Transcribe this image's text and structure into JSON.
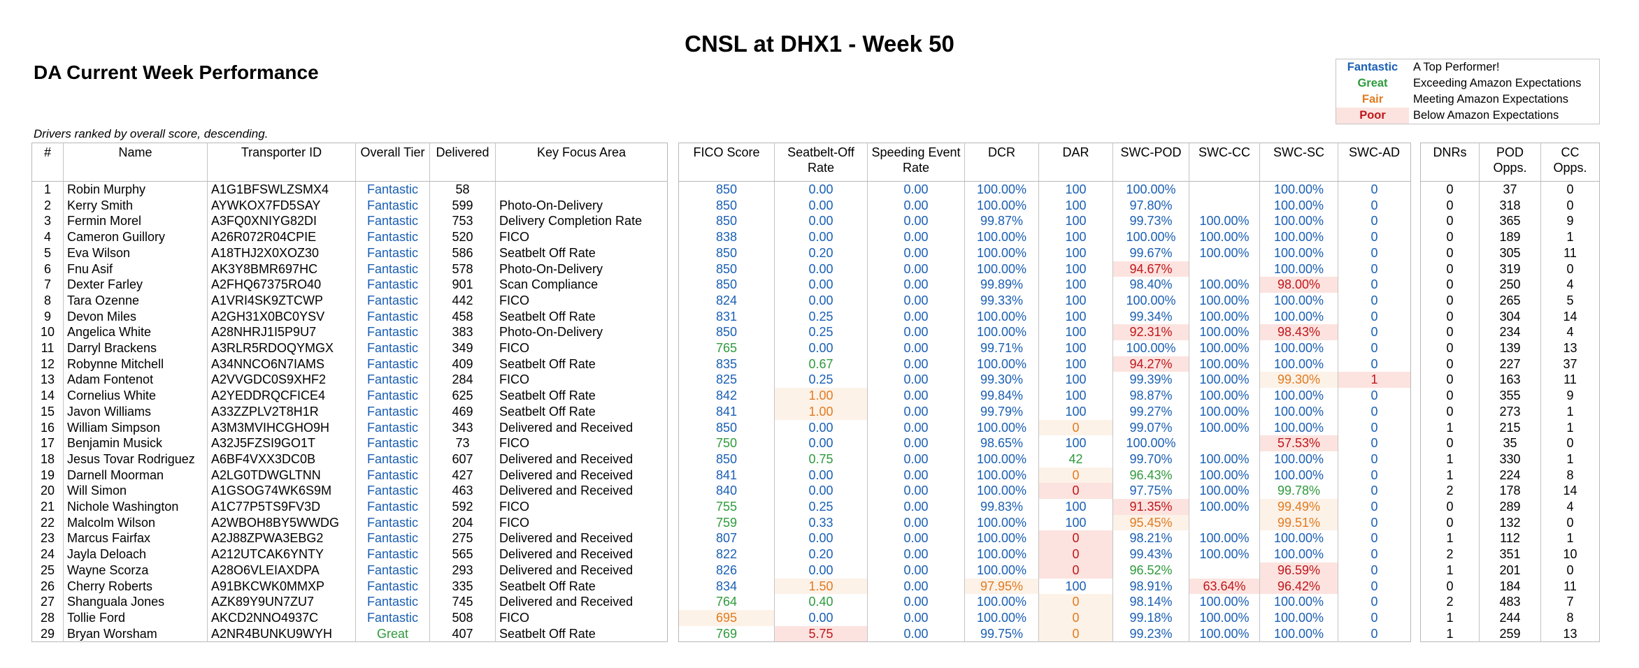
{
  "header": {
    "title": "CNSL at DHX1 - Week 50",
    "subtitle": "DA Current Week Performance",
    "note": "Drivers ranked by overall score, descending."
  },
  "legend": {
    "items": [
      {
        "tier": "Fantastic",
        "description": "A Top Performer!",
        "color": "#1a5fb4"
      },
      {
        "tier": "Great",
        "description": "Exceeding Amazon Expectations",
        "color": "#2e9a3c"
      },
      {
        "tier": "Fair",
        "description": "Meeting Amazon Expectations",
        "color": "#e07b20",
        "background": "#fdf2e8"
      },
      {
        "tier": "Poor",
        "description": "Below Amazon Expectations",
        "color": "#c0161c",
        "background": "#fce3df"
      }
    ]
  },
  "table": {
    "headers": [
      "#",
      "Name",
      "Transporter ID",
      "Overall Tier",
      "Delivered",
      "Key Focus Area",
      "FICO Score",
      "Seatbelt-Off Rate",
      "Speeding Event Rate",
      "DCR",
      "DAR",
      "SWC-POD",
      "SWC-CC",
      "SWC-SC",
      "SWC-AD",
      "DNRs",
      "POD Opps.",
      "CC Opps."
    ],
    "rows": [
      {
        "cells": [
          "1",
          "Robin Murphy",
          "A1G1BFSWLZSMX4",
          "Fantastic",
          "58",
          null,
          "850",
          "0.00",
          "0.00",
          "100.00%",
          "100",
          "100.00%",
          null,
          "100.00%",
          "0",
          "0",
          "37",
          "0"
        ],
        "tiers": [
          "Fantastic",
          "Fantastic",
          "Fantastic",
          "Fantastic",
          "Fantastic",
          "Fantastic",
          "Fantastic",
          null,
          "Fantastic",
          "Fantastic"
        ]
      },
      {
        "cells": [
          "2",
          "Kerry Smith",
          "AYWKOX7FD5SAY",
          "Fantastic",
          "599",
          "Photo-On-Delivery",
          "850",
          "0.00",
          "0.00",
          "100.00%",
          "100",
          "97.80%",
          null,
          "100.00%",
          "0",
          "0",
          "318",
          "0"
        ],
        "tiers": [
          "Fantastic",
          "Fantastic",
          "Fantastic",
          "Fantastic",
          "Fantastic",
          "Fantastic",
          "Fantastic",
          null,
          "Fantastic",
          "Fantastic"
        ]
      },
      {
        "cells": [
          "3",
          "Fermin Morel",
          "A3FQ0XNIYG82DI",
          "Fantastic",
          "753",
          "Delivery Completion Rate",
          "850",
          "0.00",
          "0.00",
          "99.87%",
          "100",
          "99.73%",
          "100.00%",
          "100.00%",
          "0",
          "0",
          "365",
          "9"
        ],
        "tiers": [
          "Fantastic",
          "Fantastic",
          "Fantastic",
          "Fantastic",
          "Fantastic",
          "Fantastic",
          "Fantastic",
          "Fantastic",
          "Fantastic",
          "Fantastic"
        ]
      },
      {
        "cells": [
          "4",
          "Cameron Guillory",
          "A26R072R04CPIE",
          "Fantastic",
          "520",
          "FICO",
          "838",
          "0.00",
          "0.00",
          "100.00%",
          "100",
          "100.00%",
          "100.00%",
          "100.00%",
          "0",
          "0",
          "189",
          "1"
        ],
        "tiers": [
          "Fantastic",
          "Fantastic",
          "Fantastic",
          "Fantastic",
          "Fantastic",
          "Fantastic",
          "Fantastic",
          "Fantastic",
          "Fantastic",
          "Fantastic"
        ]
      },
      {
        "cells": [
          "5",
          "Eva Wilson",
          "A18THJ2X0XOZ30",
          "Fantastic",
          "586",
          "Seatbelt Off Rate",
          "850",
          "0.20",
          "0.00",
          "100.00%",
          "100",
          "99.67%",
          "100.00%",
          "100.00%",
          "0",
          "0",
          "305",
          "11"
        ],
        "tiers": [
          "Fantastic",
          "Fantastic",
          "Fantastic",
          "Fantastic",
          "Fantastic",
          "Fantastic",
          "Fantastic",
          "Fantastic",
          "Fantastic",
          "Fantastic"
        ]
      },
      {
        "cells": [
          "6",
          "Fnu Asif",
          "AK3Y8BMR697HC",
          "Fantastic",
          "578",
          "Photo-On-Delivery",
          "850",
          "0.00",
          "0.00",
          "100.00%",
          "100",
          "94.67%",
          null,
          "100.00%",
          "0",
          "0",
          "319",
          "0"
        ],
        "tiers": [
          "Fantastic",
          "Fantastic",
          "Fantastic",
          "Fantastic",
          "Fantastic",
          "Fantastic",
          "Poor",
          null,
          "Fantastic",
          "Fantastic"
        ]
      },
      {
        "cells": [
          "7",
          "Dexter Farley",
          "A2FHQ67375RO40",
          "Fantastic",
          "901",
          "Scan Compliance",
          "850",
          "0.00",
          "0.00",
          "99.89%",
          "100",
          "98.40%",
          "100.00%",
          "98.00%",
          "0",
          "0",
          "250",
          "4"
        ],
        "tiers": [
          "Fantastic",
          "Fantastic",
          "Fantastic",
          "Fantastic",
          "Fantastic",
          "Fantastic",
          "Fantastic",
          "Fantastic",
          "Poor",
          "Fantastic"
        ]
      },
      {
        "cells": [
          "8",
          "Tara Ozenne",
          "A1VRI4SK9ZTCWP",
          "Fantastic",
          "442",
          "FICO",
          "824",
          "0.00",
          "0.00",
          "99.33%",
          "100",
          "100.00%",
          "100.00%",
          "100.00%",
          "0",
          "0",
          "265",
          "5"
        ],
        "tiers": [
          "Fantastic",
          "Fantastic",
          "Fantastic",
          "Fantastic",
          "Fantastic",
          "Fantastic",
          "Fantastic",
          "Fantastic",
          "Fantastic",
          "Fantastic"
        ]
      },
      {
        "cells": [
          "9",
          "Devon Miles",
          "A2GH31X0BC0YSV",
          "Fantastic",
          "458",
          "Seatbelt Off Rate",
          "831",
          "0.25",
          "0.00",
          "100.00%",
          "100",
          "99.34%",
          "100.00%",
          "100.00%",
          "0",
          "0",
          "304",
          "14"
        ],
        "tiers": [
          "Fantastic",
          "Fantastic",
          "Fantastic",
          "Fantastic",
          "Fantastic",
          "Fantastic",
          "Fantastic",
          "Fantastic",
          "Fantastic",
          "Fantastic"
        ]
      },
      {
        "cells": [
          "10",
          "Angelica White",
          "A28NHRJ1I5P9U7",
          "Fantastic",
          "383",
          "Photo-On-Delivery",
          "850",
          "0.25",
          "0.00",
          "100.00%",
          "100",
          "92.31%",
          "100.00%",
          "98.43%",
          "0",
          "0",
          "234",
          "4"
        ],
        "tiers": [
          "Fantastic",
          "Fantastic",
          "Fantastic",
          "Fantastic",
          "Fantastic",
          "Fantastic",
          "Poor",
          "Fantastic",
          "Poor",
          "Fantastic"
        ]
      },
      {
        "cells": [
          "11",
          "Darryl Brackens",
          "A3RLR5RDOQYMGX",
          "Fantastic",
          "349",
          "FICO",
          "765",
          "0.00",
          "0.00",
          "99.71%",
          "100",
          "100.00%",
          "100.00%",
          "100.00%",
          "0",
          "0",
          "139",
          "13"
        ],
        "tiers": [
          "Fantastic",
          "Great",
          "Fantastic",
          "Fantastic",
          "Fantastic",
          "Fantastic",
          "Fantastic",
          "Fantastic",
          "Fantastic",
          "Fantastic"
        ]
      },
      {
        "cells": [
          "12",
          "Robynne Mitchell",
          "A34NNCO6N7IAMS",
          "Fantastic",
          "409",
          "Seatbelt Off Rate",
          "835",
          "0.67",
          "0.00",
          "100.00%",
          "100",
          "94.27%",
          "100.00%",
          "100.00%",
          "0",
          "0",
          "227",
          "37"
        ],
        "tiers": [
          "Fantastic",
          "Fantastic",
          "Great",
          "Fantastic",
          "Fantastic",
          "Fantastic",
          "Poor",
          "Fantastic",
          "Fantastic",
          "Fantastic"
        ]
      },
      {
        "cells": [
          "13",
          "Adam Fontenot",
          "A2VVGDC0S9XHF2",
          "Fantastic",
          "284",
          "FICO",
          "825",
          "0.25",
          "0.00",
          "99.30%",
          "100",
          "99.39%",
          "100.00%",
          "99.30%",
          "1",
          "0",
          "163",
          "11"
        ],
        "tiers": [
          "Fantastic",
          "Fantastic",
          "Fantastic",
          "Fantastic",
          "Fantastic",
          "Fantastic",
          "Fantastic",
          "Fantastic",
          "Fair",
          "Poor"
        ]
      },
      {
        "cells": [
          "14",
          "Cornelius White",
          "A2YEDDRQCFICE4",
          "Fantastic",
          "625",
          "Seatbelt Off Rate",
          "842",
          "1.00",
          "0.00",
          "99.84%",
          "100",
          "98.87%",
          "100.00%",
          "100.00%",
          "0",
          "0",
          "355",
          "9"
        ],
        "tiers": [
          "Fantastic",
          "Fantastic",
          "Fair",
          "Fantastic",
          "Fantastic",
          "Fantastic",
          "Fantastic",
          "Fantastic",
          "Fantastic",
          "Fantastic"
        ]
      },
      {
        "cells": [
          "15",
          "Javon Williams",
          "A33ZZPLV2T8H1R",
          "Fantastic",
          "469",
          "Seatbelt Off Rate",
          "841",
          "1.00",
          "0.00",
          "99.79%",
          "100",
          "99.27%",
          "100.00%",
          "100.00%",
          "0",
          "0",
          "273",
          "1"
        ],
        "tiers": [
          "Fantastic",
          "Fantastic",
          "Fair",
          "Fantastic",
          "Fantastic",
          "Fantastic",
          "Fantastic",
          "Fantastic",
          "Fantastic",
          "Fantastic"
        ]
      },
      {
        "cells": [
          "16",
          "William Simpson",
          "A3M3MVIHCGHO9H",
          "Fantastic",
          "343",
          "Delivered and Received",
          "850",
          "0.00",
          "0.00",
          "100.00%",
          "0",
          "99.07%",
          "100.00%",
          "100.00%",
          "0",
          "1",
          "215",
          "1"
        ],
        "tiers": [
          "Fantastic",
          "Fantastic",
          "Fantastic",
          "Fantastic",
          "Fantastic",
          "Fair",
          "Fantastic",
          "Fantastic",
          "Fantastic",
          "Fantastic"
        ]
      },
      {
        "cells": [
          "17",
          "Benjamin Musick",
          "A32J5FZSI9GO1T",
          "Fantastic",
          "73",
          "FICO",
          "750",
          "0.00",
          "0.00",
          "98.65%",
          "100",
          "100.00%",
          null,
          "57.53%",
          "0",
          "0",
          "35",
          "0"
        ],
        "tiers": [
          "Fantastic",
          "Great",
          "Fantastic",
          "Fantastic",
          "Fantastic",
          "Fantastic",
          "Fantastic",
          null,
          "Poor",
          "Fantastic"
        ]
      },
      {
        "cells": [
          "18",
          "Jesus Tovar Rodriguez",
          "A6BF4VXX3DC0B",
          "Fantastic",
          "607",
          "Delivered and Received",
          "850",
          "0.75",
          "0.00",
          "100.00%",
          "42",
          "99.70%",
          "100.00%",
          "100.00%",
          "0",
          "1",
          "330",
          "1"
        ],
        "tiers": [
          "Fantastic",
          "Fantastic",
          "Great",
          "Fantastic",
          "Fantastic",
          "Great",
          "Fantastic",
          "Fantastic",
          "Fantastic",
          "Fantastic"
        ]
      },
      {
        "cells": [
          "19",
          "Darnell Moorman",
          "A2LG0TDWGLTNN",
          "Fantastic",
          "427",
          "Delivered and Received",
          "841",
          "0.00",
          "0.00",
          "100.00%",
          "0",
          "96.43%",
          "100.00%",
          "100.00%",
          "0",
          "1",
          "224",
          "8"
        ],
        "tiers": [
          "Fantastic",
          "Fantastic",
          "Fantastic",
          "Fantastic",
          "Fantastic",
          "Fair",
          "Great",
          "Fantastic",
          "Fantastic",
          "Fantastic"
        ]
      },
      {
        "cells": [
          "20",
          "Will Simon",
          "A1GSOG74WK6S9M",
          "Fantastic",
          "463",
          "Delivered and Received",
          "840",
          "0.00",
          "0.00",
          "100.00%",
          "0",
          "97.75%",
          "100.00%",
          "99.78%",
          "0",
          "2",
          "178",
          "14"
        ],
        "tiers": [
          "Fantastic",
          "Fantastic",
          "Fantastic",
          "Fantastic",
          "Fantastic",
          "Poor",
          "Fantastic",
          "Fantastic",
          "Great",
          "Fantastic"
        ]
      },
      {
        "cells": [
          "21",
          "Nichole Washington",
          "A1C77P5TS9FV3D",
          "Fantastic",
          "592",
          "FICO",
          "755",
          "0.25",
          "0.00",
          "99.83%",
          "100",
          "91.35%",
          "100.00%",
          "99.49%",
          "0",
          "0",
          "289",
          "4"
        ],
        "tiers": [
          "Fantastic",
          "Great",
          "Fantastic",
          "Fantastic",
          "Fantastic",
          "Fantastic",
          "Poor",
          "Fantastic",
          "Fair",
          "Fantastic"
        ]
      },
      {
        "cells": [
          "22",
          "Malcolm Wilson",
          "A2WBOH8BY5WWDG",
          "Fantastic",
          "204",
          "FICO",
          "759",
          "0.33",
          "0.00",
          "100.00%",
          "100",
          "95.45%",
          null,
          "99.51%",
          "0",
          "0",
          "132",
          "0"
        ],
        "tiers": [
          "Fantastic",
          "Great",
          "Fantastic",
          "Fantastic",
          "Fantastic",
          "Fantastic",
          "Fair",
          null,
          "Fair",
          "Fantastic"
        ]
      },
      {
        "cells": [
          "23",
          "Marcus Fairfax",
          "A2J88ZPWA3EBG2",
          "Fantastic",
          "275",
          "Delivered and Received",
          "807",
          "0.00",
          "0.00",
          "100.00%",
          "0",
          "98.21%",
          "100.00%",
          "100.00%",
          "0",
          "1",
          "112",
          "1"
        ],
        "tiers": [
          "Fantastic",
          "Fantastic",
          "Fantastic",
          "Fantastic",
          "Fantastic",
          "Poor",
          "Fantastic",
          "Fantastic",
          "Fantastic",
          "Fantastic"
        ]
      },
      {
        "cells": [
          "24",
          "Jayla Deloach",
          "A212UTCAK6YNTY",
          "Fantastic",
          "565",
          "Delivered and Received",
          "822",
          "0.20",
          "0.00",
          "100.00%",
          "0",
          "99.43%",
          "100.00%",
          "100.00%",
          "0",
          "2",
          "351",
          "10"
        ],
        "tiers": [
          "Fantastic",
          "Fantastic",
          "Fantastic",
          "Fantastic",
          "Fantastic",
          "Poor",
          "Fantastic",
          "Fantastic",
          "Fantastic",
          "Fantastic"
        ]
      },
      {
        "cells": [
          "25",
          "Wayne Scorza",
          "A28O6VLEIAXDPA",
          "Fantastic",
          "293",
          "Delivered and Received",
          "826",
          "0.00",
          "0.00",
          "100.00%",
          "0",
          "96.52%",
          null,
          "96.59%",
          "0",
          "1",
          "201",
          "0"
        ],
        "tiers": [
          "Fantastic",
          "Fantastic",
          "Fantastic",
          "Fantastic",
          "Fantastic",
          "Poor",
          "Great",
          null,
          "Poor",
          "Fantastic"
        ]
      },
      {
        "cells": [
          "26",
          "Cherry Roberts",
          "A91BKCWK0MMXP",
          "Fantastic",
          "335",
          "Seatbelt Off Rate",
          "834",
          "1.50",
          "0.00",
          "97.95%",
          "100",
          "98.91%",
          "63.64%",
          "96.42%",
          "0",
          "0",
          "184",
          "11"
        ],
        "tiers": [
          "Fantastic",
          "Fantastic",
          "Fair",
          "Fantastic",
          "Fair",
          "Fantastic",
          "Fantastic",
          "Poor",
          "Poor",
          "Fantastic"
        ]
      },
      {
        "cells": [
          "27",
          "Shanguala Jones",
          "AZK89Y9UN7ZU7",
          "Fantastic",
          "745",
          "Delivered and Received",
          "764",
          "0.40",
          "0.00",
          "100.00%",
          "0",
          "98.14%",
          "100.00%",
          "100.00%",
          "0",
          "2",
          "483",
          "7"
        ],
        "tiers": [
          "Fantastic",
          "Great",
          "Great",
          "Fantastic",
          "Fantastic",
          "Fair",
          "Fantastic",
          "Fantastic",
          "Fantastic",
          "Fantastic"
        ]
      },
      {
        "cells": [
          "28",
          "Tollie Ford",
          "AKCD2NNO4937C",
          "Fantastic",
          "508",
          "FICO",
          "695",
          "0.00",
          "0.00",
          "100.00%",
          "0",
          "99.18%",
          "100.00%",
          "100.00%",
          "0",
          "1",
          "244",
          "8"
        ],
        "tiers": [
          "Fantastic",
          "Fair",
          "Fantastic",
          "Fantastic",
          "Fantastic",
          "Fair",
          "Fantastic",
          "Fantastic",
          "Fantastic",
          "Fantastic"
        ]
      },
      {
        "cells": [
          "29",
          "Bryan Worsham",
          "A2NR4BUNKU9WYH",
          "Great",
          "407",
          "Seatbelt Off Rate",
          "769",
          "5.75",
          "0.00",
          "99.75%",
          "0",
          "99.23%",
          "100.00%",
          "100.00%",
          "0",
          "1",
          "259",
          "13"
        ],
        "tiers": [
          "Great",
          "Great",
          "Poor",
          "Fantastic",
          "Fantastic",
          "Fair",
          "Fantastic",
          "Fantastic",
          "Fantastic",
          "Fantastic"
        ]
      }
    ]
  }
}
